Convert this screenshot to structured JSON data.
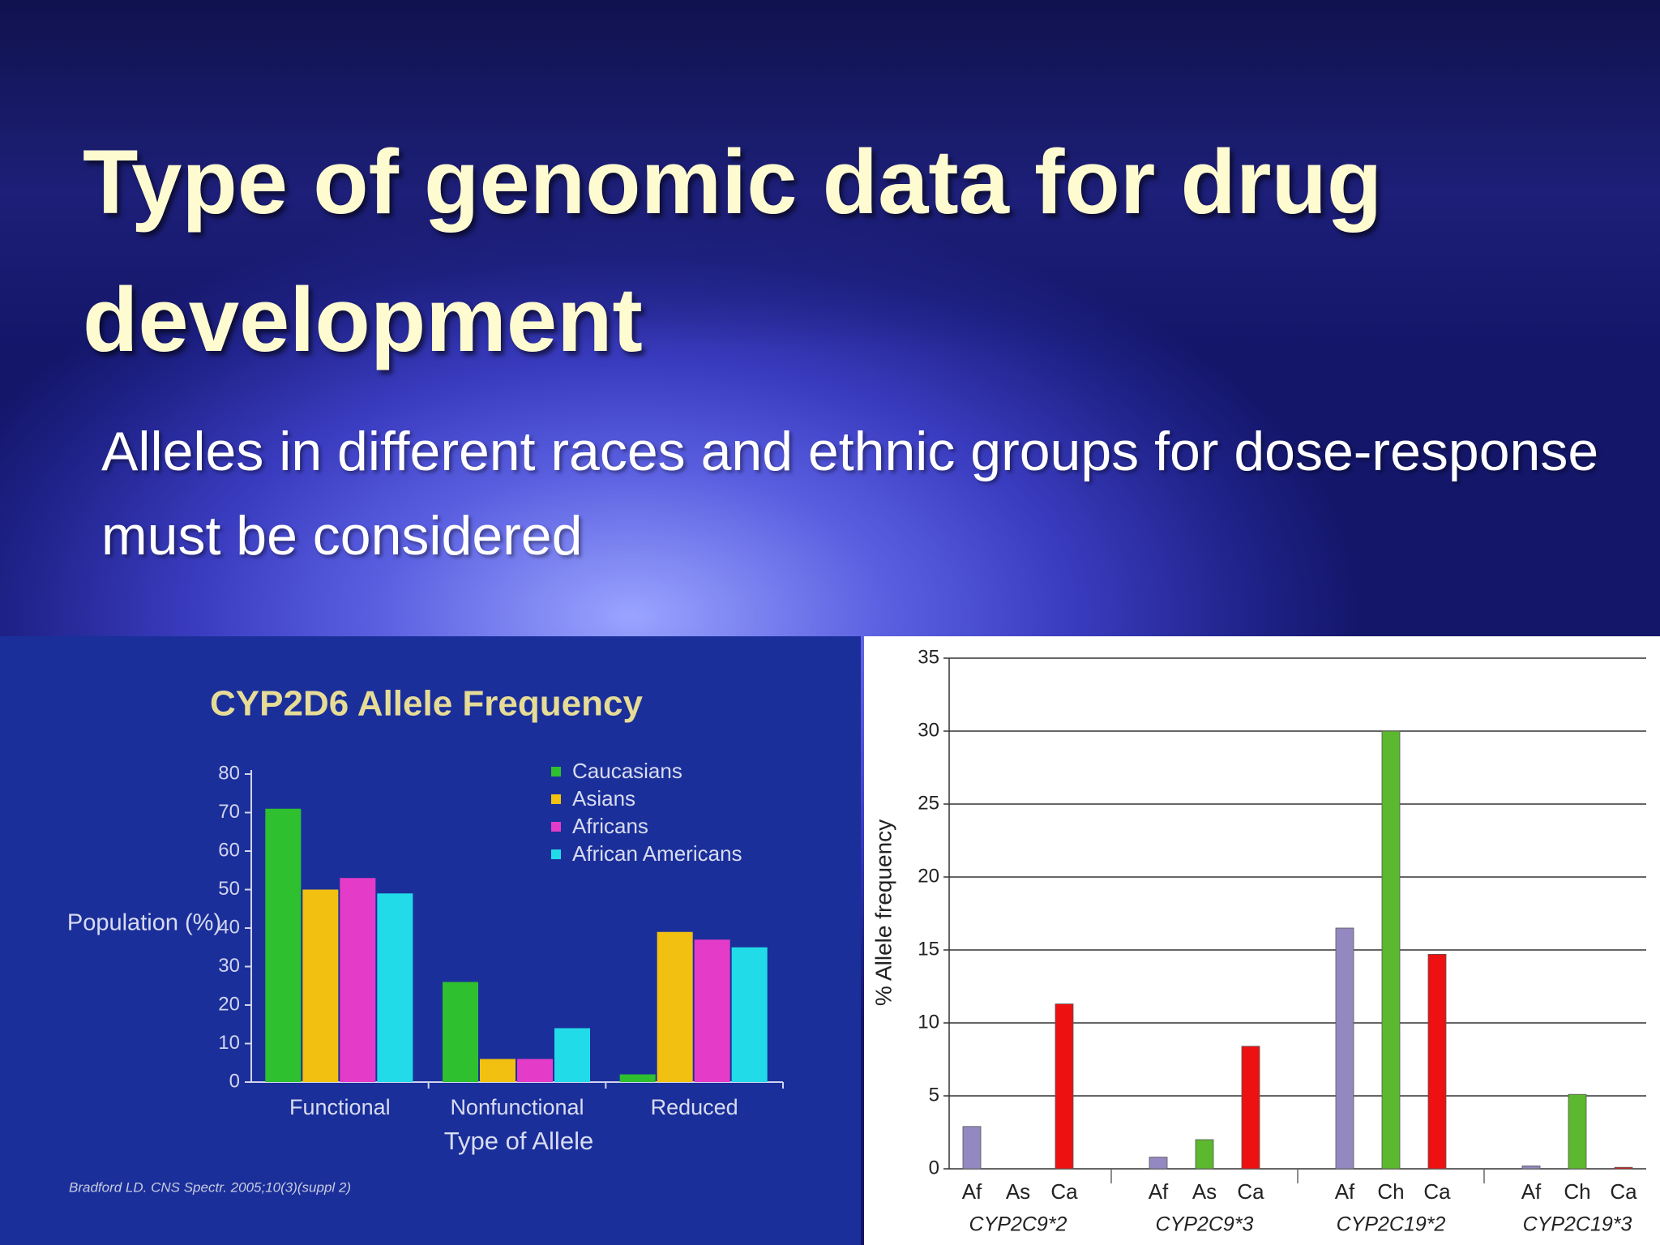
{
  "slide": {
    "title": "Type of genomic data for drug development",
    "subtitle": "Alleles in different races and ethnic groups for dose-response must be considered"
  },
  "chart_data": [
    {
      "type": "bar",
      "title": "CYP2D6 Allele Frequency",
      "y_label": "Population (%)",
      "x_label": "Type of Allele",
      "source": "Bradford LD. CNS Spectr. 2005;10(3)(suppl 2)",
      "categories": [
        "Functional",
        "Nonfunctional",
        "Reduced"
      ],
      "series": [
        {
          "name": "Caucasians",
          "color": "#2ec02e",
          "values": [
            71,
            26,
            2
          ]
        },
        {
          "name": "Asians",
          "color": "#f2c010",
          "values": [
            50,
            6,
            39
          ]
        },
        {
          "name": "Africans",
          "color": "#e43cc8",
          "values": [
            53,
            6,
            37
          ]
        },
        {
          "name": "African Americans",
          "color": "#22dbe8",
          "values": [
            49,
            14,
            35
          ]
        }
      ],
      "ylim": [
        0,
        80
      ],
      "yticks": [
        0,
        10,
        20,
        30,
        40,
        50,
        60,
        70,
        80
      ],
      "legend": "upper right"
    },
    {
      "type": "grouped-bar",
      "y_label": "% Allele frequency",
      "groups": [
        {
          "name": "CYP2C9*2",
          "categories": [
            "Af",
            "As",
            "Ca"
          ],
          "values": [
            2.9,
            0,
            11.3
          ],
          "colors": [
            "#9488c0",
            "#5cb82e",
            "#ee1111"
          ]
        },
        {
          "name": "CYP2C9*3",
          "categories": [
            "Af",
            "As",
            "Ca"
          ],
          "values": [
            0.8,
            2.0,
            8.4
          ],
          "colors": [
            "#9488c0",
            "#5cb82e",
            "#ee1111"
          ]
        },
        {
          "name": "CYP2C19*2",
          "categories": [
            "Af",
            "Ch",
            "Ca"
          ],
          "values": [
            16.5,
            30,
            14.7
          ],
          "colors": [
            "#9488c0",
            "#5cb82e",
            "#ee1111"
          ]
        },
        {
          "name": "CYP2C19*3",
          "categories": [
            "Af",
            "Ch",
            "Ca"
          ],
          "values": [
            0.2,
            5.1,
            0.1
          ],
          "colors": [
            "#9488c0",
            "#5cb82e",
            "#ee1111"
          ]
        }
      ],
      "ylim": [
        0,
        35
      ],
      "yticks": [
        0,
        5,
        10,
        15,
        20,
        25,
        30,
        35
      ],
      "grid": true
    }
  ]
}
